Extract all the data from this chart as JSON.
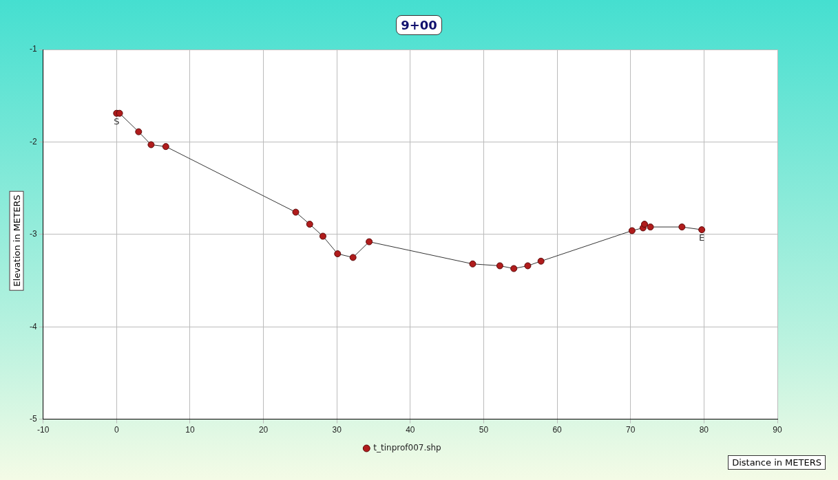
{
  "chart_data": {
    "type": "line",
    "title": "9+00",
    "xlabel": "Distance in METERS",
    "ylabel": "Elevation in METERS",
    "xlim": [
      -10,
      90
    ],
    "xticks": [
      -10,
      0,
      10,
      20,
      30,
      40,
      50,
      60,
      70,
      80,
      90
    ],
    "ylim": [
      -5,
      -1
    ],
    "yticks": [
      -5,
      -4,
      -3,
      -2,
      -1
    ],
    "grid": true,
    "legend": "bottom",
    "marker": "circle",
    "line_style": "solid",
    "series": [
      {
        "name": "t_tinprof007.shp",
        "color": "#b01c1c",
        "x": [
          0,
          0.4,
          3.0,
          4.7,
          6.7,
          24.4,
          26.3,
          28.1,
          30.1,
          32.2,
          34.4,
          48.5,
          52.2,
          54.1,
          56.0,
          57.8,
          70.2,
          71.7,
          71.9,
          72.7,
          77.0,
          79.7
        ],
        "values": [
          -1.69,
          -1.69,
          -1.89,
          -2.03,
          -2.05,
          -2.76,
          -2.89,
          -3.02,
          -3.21,
          -3.25,
          -3.08,
          -3.32,
          -3.34,
          -3.37,
          -3.34,
          -3.29,
          -2.96,
          -2.93,
          -2.89,
          -2.92,
          -2.92,
          -2.95
        ]
      }
    ],
    "annotations": [
      {
        "text": "S",
        "x": 0,
        "y": -1.69
      },
      {
        "text": "E",
        "x": 79.7,
        "y": -2.95
      }
    ]
  }
}
